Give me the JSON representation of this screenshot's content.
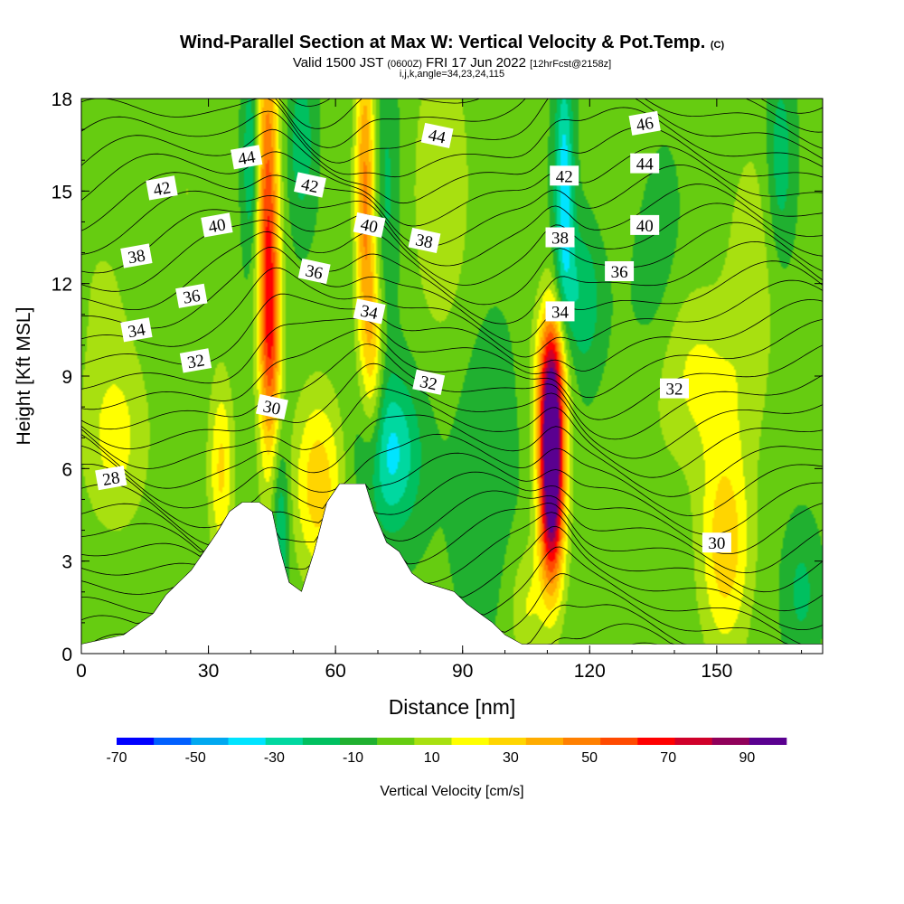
{
  "header": {
    "title": "Wind-Parallel Section at Max W: Vertical Velocity & Pot.Temp.",
    "title_mark": "(C)",
    "valid_prefix": "Valid 1500 JST",
    "valid_utc": "(0600Z)",
    "valid_date": "FRI 17 Jun 2022",
    "forecast_info": "[12hrFcst@2158z]",
    "indices": "i,j,k,angle=34,23,24,115"
  },
  "chart_data": {
    "type": "heatmap",
    "xlabel": "Distance [nm]",
    "ylabel": "Height [Kft MSL]",
    "xlim": [
      0,
      175
    ],
    "ylim": [
      0,
      18
    ],
    "x_ticks": [
      0,
      30,
      60,
      90,
      120,
      150
    ],
    "y_ticks": [
      0,
      3,
      6,
      9,
      12,
      15,
      18
    ],
    "grid": false,
    "colorbar": {
      "label": "Vertical Velocity [cm/s]",
      "placement": "bottom",
      "levels": [
        -70,
        -60,
        -50,
        -40,
        -30,
        -20,
        -10,
        0,
        10,
        20,
        30,
        40,
        50,
        60,
        70,
        80,
        90,
        100
      ],
      "tick_labels": [
        -70,
        -50,
        -30,
        -10,
        10,
        30,
        50,
        70,
        90
      ],
      "colors": [
        "#0000ff",
        "#0060ff",
        "#00a8f0",
        "#00e4ff",
        "#00d8a0",
        "#00c060",
        "#20b030",
        "#66cc11",
        "#a8e010",
        "#ffff00",
        "#ffd500",
        "#ffac00",
        "#ff8000",
        "#ff4a00",
        "#ff0000",
        "#d0002a",
        "#90005a",
        "#5a0090"
      ]
    },
    "terrain": [
      {
        "x": 0,
        "h": 0.3
      },
      {
        "x": 10,
        "h": 0.6
      },
      {
        "x": 17,
        "h": 1.3
      },
      {
        "x": 20,
        "h": 1.9
      },
      {
        "x": 23,
        "h": 2.3
      },
      {
        "x": 26,
        "h": 2.7
      },
      {
        "x": 29,
        "h": 3.3
      },
      {
        "x": 32,
        "h": 3.9
      },
      {
        "x": 35,
        "h": 4.6
      },
      {
        "x": 38,
        "h": 4.9
      },
      {
        "x": 42,
        "h": 4.9
      },
      {
        "x": 45,
        "h": 4.6
      },
      {
        "x": 47,
        "h": 3.3
      },
      {
        "x": 49,
        "h": 2.3
      },
      {
        "x": 52,
        "h": 2.0
      },
      {
        "x": 55,
        "h": 3.3
      },
      {
        "x": 58,
        "h": 4.9
      },
      {
        "x": 61,
        "h": 5.5
      },
      {
        "x": 67,
        "h": 5.5
      },
      {
        "x": 69,
        "h": 4.6
      },
      {
        "x": 72,
        "h": 3.6
      },
      {
        "x": 75,
        "h": 3.3
      },
      {
        "x": 78,
        "h": 2.6
      },
      {
        "x": 81,
        "h": 2.3
      },
      {
        "x": 88,
        "h": 2.0
      },
      {
        "x": 91,
        "h": 1.6
      },
      {
        "x": 94,
        "h": 1.3
      },
      {
        "x": 97,
        "h": 1.0
      },
      {
        "x": 100,
        "h": 0.6
      },
      {
        "x": 104,
        "h": 0.3
      },
      {
        "x": 175,
        "h": 0.3
      }
    ],
    "vertical_velocity_features": [
      {
        "x": 44,
        "h": 14,
        "xw": 2.6,
        "hw": 7,
        "w": 62
      },
      {
        "x": 45,
        "h": 10,
        "xw": 2.4,
        "hw": 3.5,
        "w": 30
      },
      {
        "x": 40,
        "h": 16,
        "xw": 1.8,
        "hw": 3,
        "w": -25
      },
      {
        "x": 52,
        "h": 16.5,
        "xw": 3,
        "hw": 2.5,
        "w": -20
      },
      {
        "x": 56,
        "h": 5.5,
        "xw": 6,
        "hw": 3,
        "w": 35
      },
      {
        "x": 47,
        "h": 4,
        "xw": 2,
        "hw": 3,
        "w": -25
      },
      {
        "x": 33,
        "h": 6,
        "xw": 3,
        "hw": 3,
        "w": 30
      },
      {
        "x": 67,
        "h": 15,
        "xw": 2.4,
        "hw": 5.5,
        "w": 50
      },
      {
        "x": 69,
        "h": 9.5,
        "xw": 2.4,
        "hw": 3.5,
        "w": 28
      },
      {
        "x": 73,
        "h": 6.5,
        "xw": 7,
        "hw": 2.5,
        "w": -35
      },
      {
        "x": 72,
        "h": 15,
        "xw": 3,
        "hw": 4,
        "w": -15
      },
      {
        "x": 85,
        "h": 15,
        "xw": 7,
        "hw": 5,
        "w": 18
      },
      {
        "x": 111,
        "h": 6.5,
        "xw": 2.6,
        "hw": 3.5,
        "w": 100
      },
      {
        "x": 111,
        "h": 4.5,
        "xw": 3.5,
        "hw": 3,
        "w": 40
      },
      {
        "x": 111,
        "h": 9,
        "xw": 4,
        "hw": 2.5,
        "w": 45
      },
      {
        "x": 114,
        "h": 15,
        "xw": 2.2,
        "hw": 4,
        "w": -40
      },
      {
        "x": 118,
        "h": 11.5,
        "xw": 5,
        "hw": 2.5,
        "w": -22
      },
      {
        "x": 105,
        "h": 1.5,
        "xw": 4,
        "hw": 2,
        "w": 18
      },
      {
        "x": 152,
        "h": 3.5,
        "xw": 6,
        "hw": 3.5,
        "w": 35
      },
      {
        "x": 145,
        "h": 9,
        "xw": 10,
        "hw": 3,
        "w": 20
      },
      {
        "x": 158,
        "h": 12,
        "xw": 6,
        "hw": 5,
        "w": 15
      },
      {
        "x": 165,
        "h": 16,
        "xw": 3,
        "hw": 3,
        "w": -20
      },
      {
        "x": 170,
        "h": 2,
        "xw": 4,
        "hw": 2,
        "w": -15
      },
      {
        "x": 8,
        "h": 7,
        "xw": 8,
        "hw": 3,
        "w": 22
      },
      {
        "x": 5,
        "h": 12,
        "xw": 8,
        "hw": 3,
        "w": 8
      },
      {
        "x": 25,
        "h": 15,
        "xw": 6,
        "hw": 3,
        "w": 8
      },
      {
        "x": 135,
        "h": 13,
        "xw": 6,
        "hw": 4,
        "w": -10
      },
      {
        "x": 128,
        "h": 16,
        "xw": 8,
        "hw": 3,
        "w": 8
      },
      {
        "x": 95,
        "h": 6,
        "xw": 8,
        "hw": 5,
        "w": -8
      },
      {
        "x": 130,
        "h": 5,
        "xw": 8,
        "hw": 4,
        "w": 5
      }
    ],
    "theta_contour_labels": [
      {
        "text": "28",
        "x": 7,
        "h": 5.7
      },
      {
        "text": "30",
        "x": 45,
        "h": 8.0
      },
      {
        "text": "30",
        "x": 150,
        "h": 3.6
      },
      {
        "text": "32",
        "x": 27,
        "h": 9.5
      },
      {
        "text": "32",
        "x": 82,
        "h": 8.8
      },
      {
        "text": "32",
        "x": 140,
        "h": 8.6
      },
      {
        "text": "34",
        "x": 13,
        "h": 10.5
      },
      {
        "text": "34",
        "x": 68,
        "h": 11.1
      },
      {
        "text": "34",
        "x": 113,
        "h": 11.1
      },
      {
        "text": "36",
        "x": 26,
        "h": 11.6
      },
      {
        "text": "36",
        "x": 55,
        "h": 12.4
      },
      {
        "text": "36",
        "x": 127,
        "h": 12.4
      },
      {
        "text": "38",
        "x": 13,
        "h": 12.9
      },
      {
        "text": "38",
        "x": 81,
        "h": 13.4
      },
      {
        "text": "38",
        "x": 113,
        "h": 13.5
      },
      {
        "text": "40",
        "x": 32,
        "h": 13.9
      },
      {
        "text": "40",
        "x": 68,
        "h": 13.9
      },
      {
        "text": "40",
        "x": 133,
        "h": 13.9
      },
      {
        "text": "42",
        "x": 19,
        "h": 15.1
      },
      {
        "text": "42",
        "x": 54,
        "h": 15.2
      },
      {
        "text": "42",
        "x": 114,
        "h": 15.5
      },
      {
        "text": "44",
        "x": 39,
        "h": 16.1
      },
      {
        "text": "44",
        "x": 84,
        "h": 16.8
      },
      {
        "text": "44",
        "x": 133,
        "h": 15.9
      },
      {
        "text": "46",
        "x": 133,
        "h": 17.2
      }
    ]
  }
}
